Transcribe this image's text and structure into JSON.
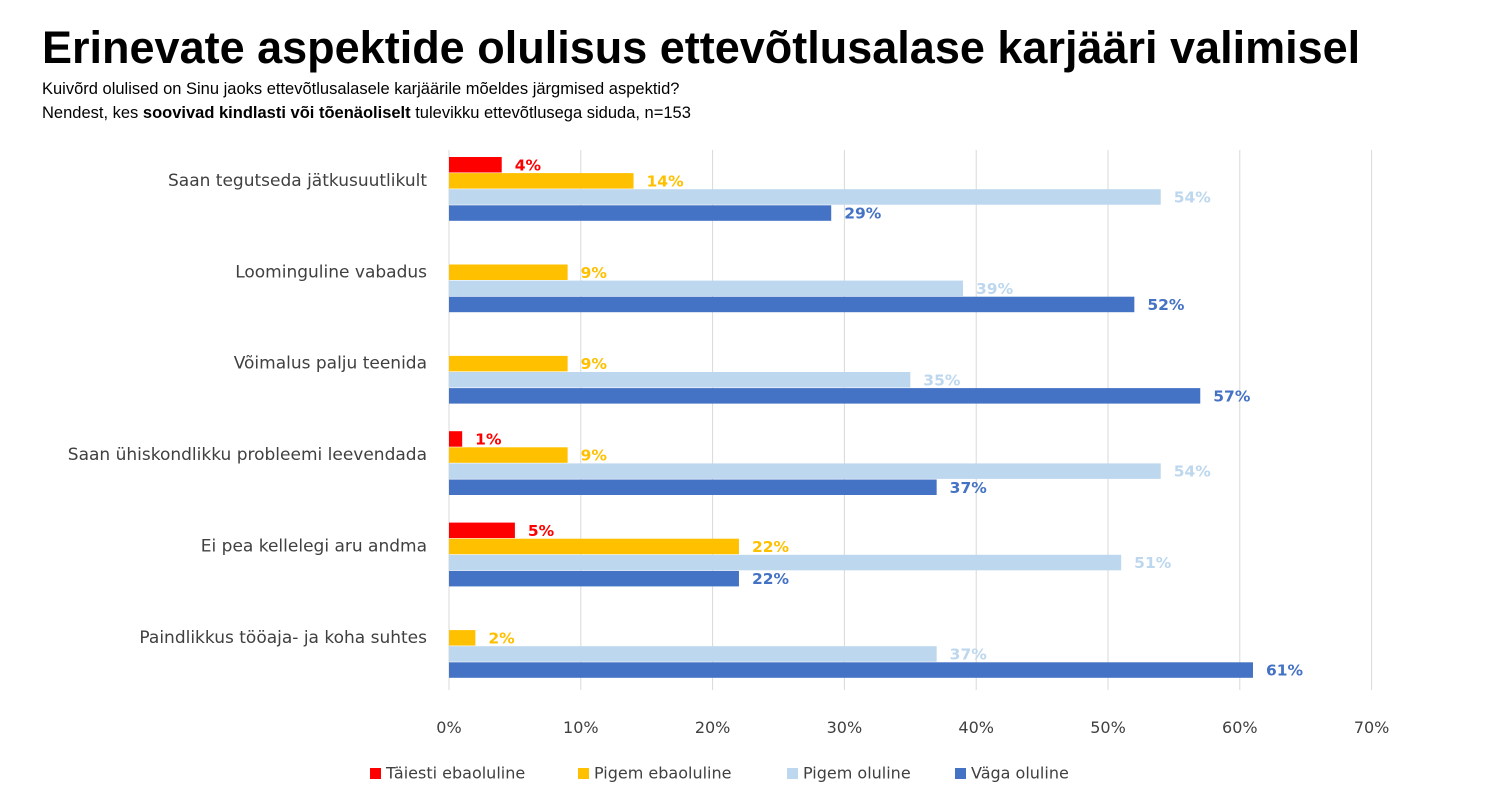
{
  "header": {
    "title": "Erinevate aspektide olulisus ettevõtlusalase karjääri valimisel",
    "subtitle_line1": "Kuivõrd olulised on Sinu jaoks ettevõtlusalasele karjäärile mõeldes järgmised aspektid?",
    "subtitle_line2_pre": "Nendest, kes ",
    "subtitle_line2_bold": "soovivad kindlasti või tõenäoliselt",
    "subtitle_line2_post": " tulevikku ettevõtlusega siduda, n=153"
  },
  "chart_data": {
    "type": "bar",
    "orientation": "horizontal",
    "categories": [
      "Saan tegutseda jätkusuutlikult",
      "Loominguline vabadus",
      "Võimalus palju teenida",
      "Saan  ühiskondlikku probleemi leevendada",
      "Ei pea kellelegi aru andma",
      "Paindlikkus tööaja- ja koha suhtes"
    ],
    "series": [
      {
        "name": "Täiesti ebaoluline",
        "color": "#ff0000",
        "values": [
          4,
          null,
          null,
          1,
          5,
          null
        ],
        "labels": [
          "4%",
          "",
          "",
          "1%",
          "5%",
          ""
        ]
      },
      {
        "name": "Pigem ebaoluline",
        "color": "#ffc000",
        "values": [
          14,
          9,
          9,
          9,
          22,
          2
        ],
        "labels": [
          "14%",
          "9%",
          "9%",
          "9%",
          "22%",
          "2%"
        ]
      },
      {
        "name": "Pigem oluline",
        "color": "#bdd7ee",
        "values": [
          54,
          39,
          35,
          54,
          51,
          37
        ],
        "labels": [
          "54%",
          "39%",
          "35%",
          "54%",
          "51%",
          "37%"
        ]
      },
      {
        "name": "Väga oluline",
        "color": "#4472c4",
        "values": [
          29,
          52,
          57,
          37,
          22,
          61
        ],
        "labels": [
          "29%",
          "52%",
          "57%",
          "37%",
          "22%",
          "61%"
        ]
      }
    ],
    "xlim": [
      0,
      70
    ],
    "x_ticks": [
      "0%",
      "10%",
      "20%",
      "30%",
      "40%",
      "50%",
      "60%",
      "70%"
    ],
    "grid": true,
    "legend_position": "bottom"
  }
}
